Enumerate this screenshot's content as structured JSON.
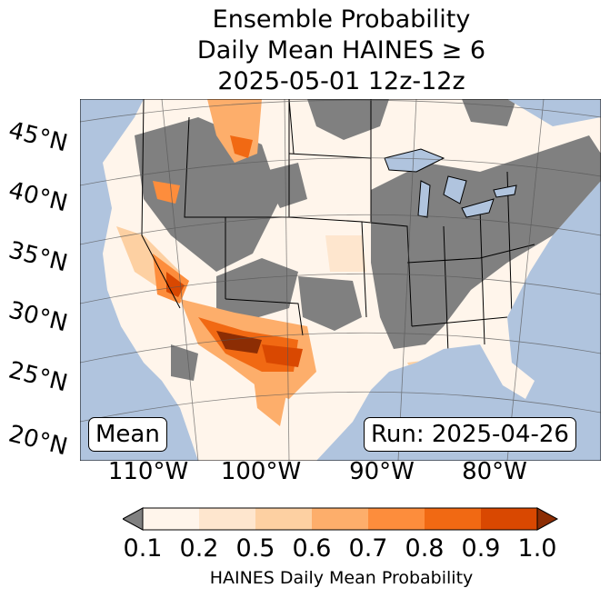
{
  "title": {
    "line1": "Ensemble Probability",
    "line2": "Daily Mean HAINES ≥ 6",
    "line3": "2025-05-01 12z-12z"
  },
  "map": {
    "lat_labels": [
      "45°N",
      "40°N",
      "35°N",
      "30°N",
      "25°N",
      "20°N"
    ],
    "lon_labels": [
      "110°W",
      "100°W",
      "90°W",
      "80°W"
    ],
    "stat_label": "Mean",
    "run_label": "Run: 2025-04-26",
    "colors": {
      "ocean": "#b0c4de",
      "below_threshold": "#808080",
      "under_min": "#808080"
    }
  },
  "colorbar": {
    "ticks": [
      "0.1",
      "0.2",
      "0.5",
      "0.6",
      "0.7",
      "0.8",
      "0.9",
      "1.0"
    ],
    "colors": [
      "#fff5eb",
      "#fee6ce",
      "#fdd0a2",
      "#fdae6b",
      "#fd8d3c",
      "#f16913",
      "#d94801",
      "#8c2d04"
    ],
    "label": "HAINES Daily Mean Probability"
  }
}
